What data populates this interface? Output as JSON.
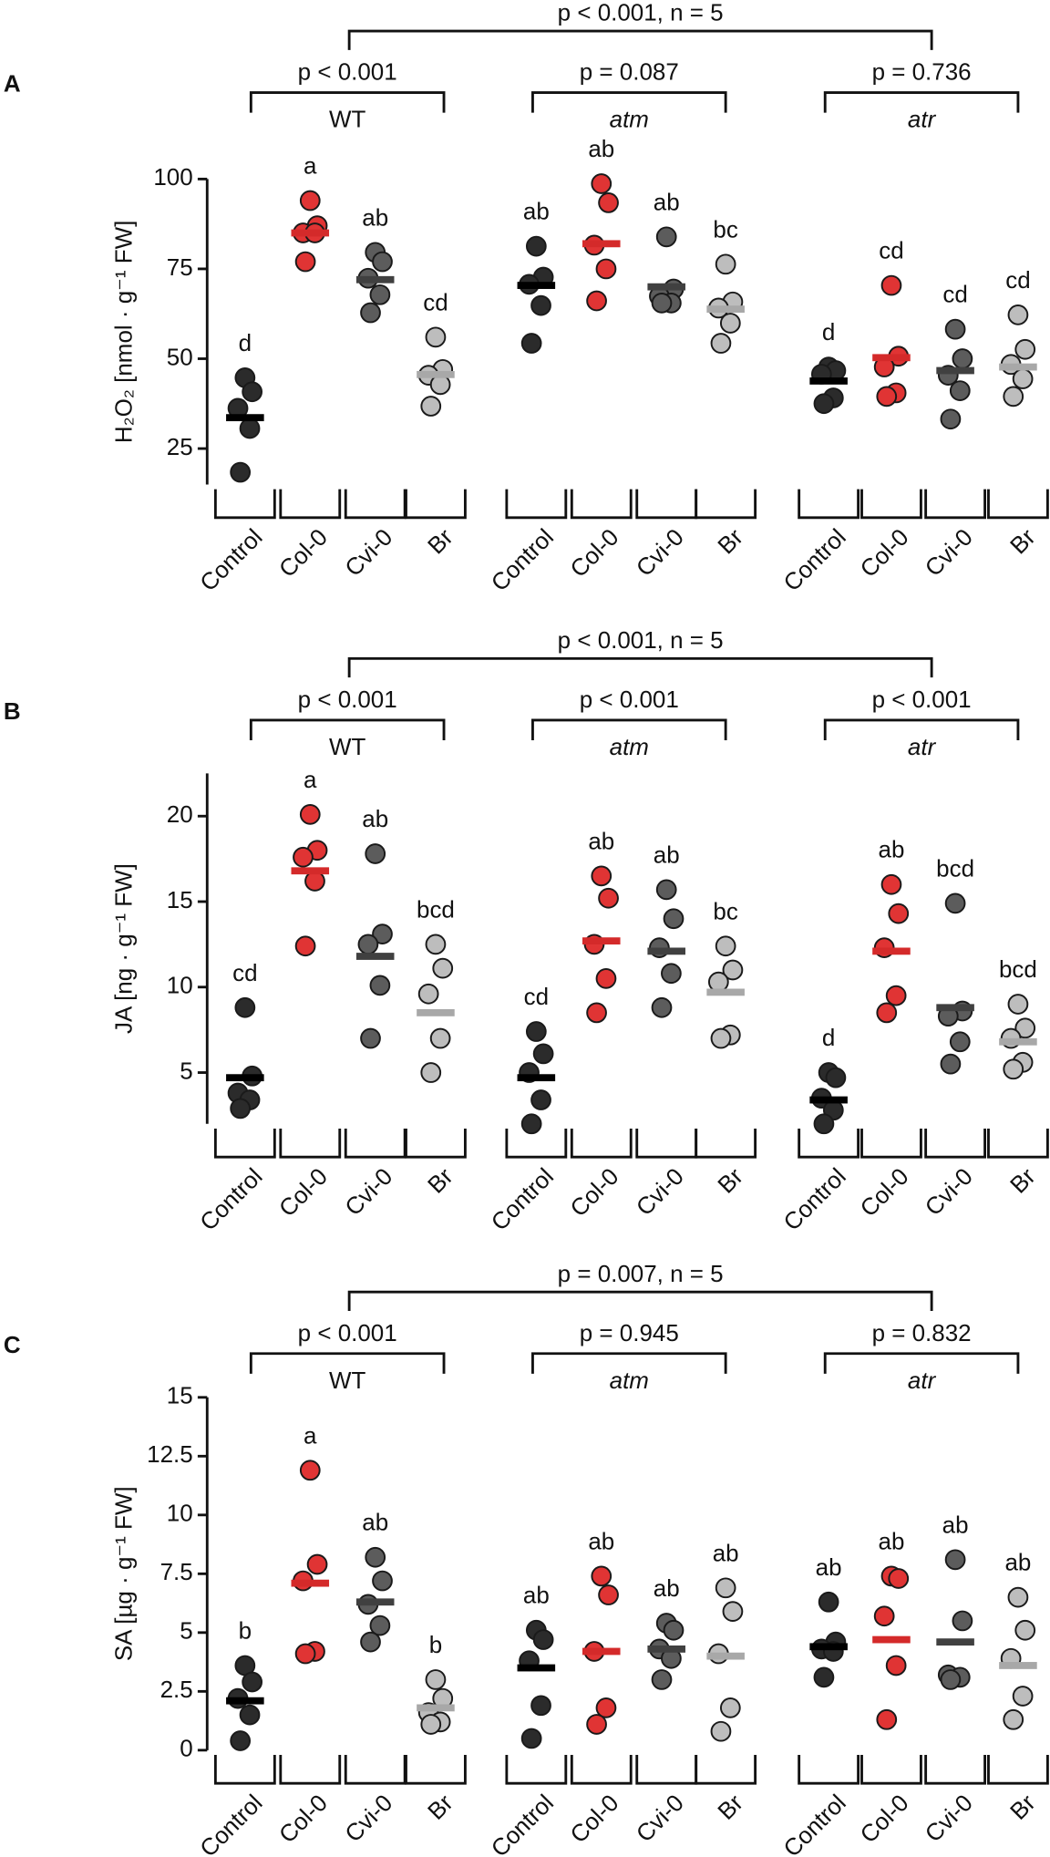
{
  "chart_data": [
    {
      "type": "strip",
      "panel": "A",
      "y_label": "H₂O₂ [nmol · g⁻¹ FW]",
      "overall_p": "p < 0.001, n = 5",
      "ylim": [
        15,
        100
      ],
      "yticks": [
        25,
        50,
        75,
        100
      ],
      "colors": [
        "#2b2b2b",
        "#e03434",
        "#5c5c5c",
        "#bdbdbd"
      ],
      "mean_colors": [
        "#000000",
        "#d42a2a",
        "#404040",
        "#a8a8a8"
      ],
      "groups": [
        {
          "name": "WT",
          "p_label": "p < 0.001",
          "categories": [
            "Control",
            "Col-0",
            "Cvi-0",
            "Br"
          ],
          "letters": [
            "d",
            "a",
            "ab",
            "cd"
          ],
          "points": [
            [
              44.7,
              40.8,
              36.2,
              30.6,
              18.4
            ],
            [
              94,
              87,
              85,
              85,
              77
            ],
            [
              79.6,
              77,
              72.4,
              67.8,
              62.8
            ],
            [
              56,
              47,
              45.4,
              42.8,
              36.8
            ]
          ],
          "means": [
            33.6,
            85,
            72,
            45.6
          ]
        },
        {
          "name": "atm",
          "p_label": "p =  0.087",
          "categories": [
            "Control",
            "Col-0",
            "Cvi-0",
            "Br"
          ],
          "letters": [
            "ab",
            "ab",
            "ab",
            "bc"
          ],
          "points": [
            [
              81.3,
              72.7,
              70.7,
              64.8,
              54.3
            ],
            [
              98.7,
              93.4,
              81.6,
              75,
              66.1
            ],
            [
              83.9,
              69.4,
              67.4,
              65.5,
              65.5
            ],
            [
              76.3,
              65.8,
              64.1,
              59.9,
              54.3
            ]
          ],
          "means": [
            70.4,
            82,
            70,
            63.8
          ]
        },
        {
          "name": "atr",
          "p_label": "p = 0.736",
          "categories": [
            "Control",
            "Col-0",
            "Cvi-0",
            "Br"
          ],
          "letters": [
            "d",
            "cd",
            "cd",
            "cd"
          ],
          "points": [
            [
              47.7,
              46.7,
              45.7,
              39.1,
              37.5
            ],
            [
              70.4,
              50.7,
              47.7,
              40.5,
              39.5
            ],
            [
              58.2,
              50,
              45.4,
              41.1,
              33.2
            ],
            [
              62.2,
              52.6,
              48.4,
              44.4,
              39.5
            ]
          ],
          "means": [
            43.8,
            50.3,
            46.7,
            47.7
          ]
        }
      ]
    },
    {
      "type": "strip",
      "panel": "B",
      "y_label": "JA [ng · g⁻¹ FW]",
      "overall_p": "p < 0.001, n = 5",
      "ylim": [
        2,
        22.5
      ],
      "yticks": [
        5,
        10,
        15,
        20
      ],
      "colors": [
        "#2b2b2b",
        "#e03434",
        "#5c5c5c",
        "#bdbdbd"
      ],
      "mean_colors": [
        "#000000",
        "#d42a2a",
        "#404040",
        "#a8a8a8"
      ],
      "groups": [
        {
          "name": "WT",
          "p_label": "p < 0.001",
          "categories": [
            "Control",
            "Col-0",
            "Cvi-0",
            "Br"
          ],
          "letters": [
            "cd",
            "a",
            "ab",
            "bcd"
          ],
          "points": [
            [
              8.8,
              4.8,
              3.8,
              3.4,
              2.9
            ],
            [
              20.1,
              18,
              17.6,
              16.2,
              12.4
            ],
            [
              17.8,
              13.1,
              12.5,
              10.1,
              7
            ],
            [
              12.5,
              11.1,
              9.6,
              7,
              5
            ]
          ],
          "means": [
            4.7,
            16.8,
            11.8,
            8.5
          ]
        },
        {
          "name": "atm",
          "p_label": "p < 0.001",
          "categories": [
            "Control",
            "Col-0",
            "Cvi-0",
            "Br"
          ],
          "letters": [
            "cd",
            "ab",
            "ab",
            "bc"
          ],
          "points": [
            [
              7.4,
              6.1,
              5,
              3.4,
              2
            ],
            [
              16.5,
              15.2,
              12.5,
              10.5,
              8.5
            ],
            [
              15.7,
              14,
              12.3,
              10.8,
              8.8
            ],
            [
              12.4,
              11,
              10.3,
              7.2,
              7
            ]
          ],
          "means": [
            4.7,
            12.7,
            12.1,
            9.7
          ]
        },
        {
          "name": "atr",
          "p_label": "p < 0.001",
          "categories": [
            "Control",
            "Col-0",
            "Cvi-0",
            "Br"
          ],
          "letters": [
            "d",
            "ab",
            "bcd",
            "bcd"
          ],
          "points": [
            [
              5,
              4.7,
              3.5,
              2.8,
              2
            ],
            [
              16,
              14.3,
              12.3,
              9.5,
              8.5
            ],
            [
              14.9,
              8.6,
              8.3,
              6.8,
              5.5
            ],
            [
              9,
              7.6,
              7,
              5.6,
              5.2
            ]
          ],
          "means": [
            3.4,
            12.1,
            8.8,
            6.8
          ]
        }
      ]
    },
    {
      "type": "strip",
      "panel": "C",
      "y_label": "SA [µg · g⁻¹ FW]",
      "overall_p": "p = 0.007, n = 5",
      "ylim": [
        0,
        15
      ],
      "yticks": [
        0,
        2.5,
        5,
        7.5,
        10,
        12.5,
        15
      ],
      "colors": [
        "#2b2b2b",
        "#e03434",
        "#5c5c5c",
        "#bdbdbd"
      ],
      "mean_colors": [
        "#000000",
        "#d42a2a",
        "#404040",
        "#a8a8a8"
      ],
      "groups": [
        {
          "name": "WT",
          "p_label": "p < 0.001",
          "categories": [
            "Control",
            "Col-0",
            "Cvi-0",
            "Br"
          ],
          "letters": [
            "b",
            "a",
            "ab",
            "b"
          ],
          "points": [
            [
              3.6,
              2.9,
              2.2,
              1.5,
              0.4
            ],
            [
              11.9,
              7.9,
              7.2,
              4.2,
              4.1
            ],
            [
              8.2,
              7.2,
              6.2,
              5.3,
              4.6
            ],
            [
              3,
              2.2,
              1.6,
              1.2,
              1.1
            ]
          ],
          "means": [
            2.1,
            7.1,
            6.3,
            1.8
          ]
        },
        {
          "name": "atm",
          "p_label": "p =  0.945",
          "categories": [
            "Control",
            "Col-0",
            "Cvi-0",
            "Br"
          ],
          "letters": [
            "ab",
            "ab",
            "ab",
            "ab"
          ],
          "points": [
            [
              5.1,
              4.7,
              3.8,
              1.9,
              0.5
            ],
            [
              7.4,
              6.6,
              4.2,
              1.8,
              1.1
            ],
            [
              5.4,
              5.1,
              4.3,
              3.9,
              3
            ],
            [
              6.9,
              5.9,
              4.1,
              1.8,
              0.8
            ]
          ],
          "means": [
            3.5,
            4.2,
            4.3,
            4
          ]
        },
        {
          "name": "atr",
          "p_label": "p = 0.832",
          "categories": [
            "Control",
            "Col-0",
            "Cvi-0",
            "Br"
          ],
          "letters": [
            "ab",
            "ab",
            "ab",
            "ab"
          ],
          "points": [
            [
              6.3,
              4.6,
              4.3,
              4.2,
              3.1
            ],
            [
              7.4,
              7.3,
              5.7,
              3.6,
              1.3
            ],
            [
              8.1,
              5.5,
              3.2,
              3.1,
              3
            ],
            [
              6.5,
              5.1,
              3.9,
              2.3,
              1.3
            ]
          ],
          "means": [
            4.4,
            4.7,
            4.6,
            3.6
          ]
        }
      ]
    }
  ]
}
